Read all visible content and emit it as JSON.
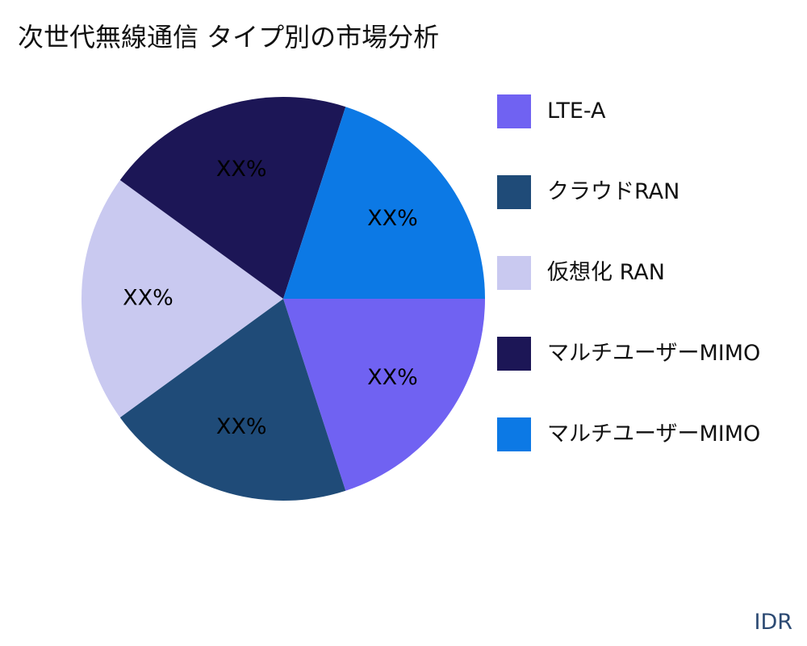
{
  "title": "次世代無線通信 タイプ別の市場分析",
  "source_label": "IDR",
  "chart_data": {
    "type": "pie",
    "title": "次世代無線通信 タイプ別の市場分析",
    "legend_position": "right",
    "series": [
      {
        "name": "LTE-A",
        "value": 20,
        "label": "XX%",
        "color": "#7062f2"
      },
      {
        "name": "クラウドRAN",
        "value": 20,
        "label": "XX%",
        "color": "#1f4b78"
      },
      {
        "name": "仮想化 RAN",
        "value": 20,
        "label": "XX%",
        "color": "#c9c9f0"
      },
      {
        "name": "マルチユーザーMIMO",
        "value": 20,
        "label": "XX%",
        "color": "#1c1656"
      },
      {
        "name": "マルチユーザーMIMO",
        "value": 20,
        "label": "XX%",
        "color": "#0c79e5"
      }
    ]
  }
}
